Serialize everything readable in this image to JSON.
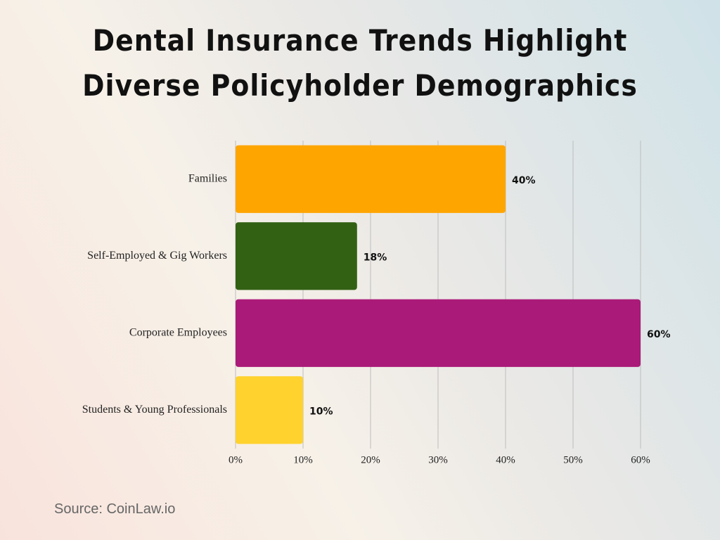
{
  "chart_data": {
    "type": "barh",
    "title": "Dental Insurance Trends Highlight Diverse Policyholder Demographics",
    "categories": [
      "Families",
      "Self-Employed & Gig Workers",
      "Corporate Employees",
      "Students & Young Professionals"
    ],
    "values": [
      40,
      18,
      60,
      10
    ],
    "value_labels": [
      "40%",
      "18%",
      "60%",
      "10%"
    ],
    "colors": [
      "#ffa500",
      "#336114",
      "#aa1a78",
      "#ffd22e"
    ],
    "xlim": [
      0,
      60
    ],
    "xticks": [
      {
        "value": 0,
        "label": "0%"
      },
      {
        "value": 10,
        "label": "10%"
      },
      {
        "value": 20,
        "label": "20%"
      },
      {
        "value": 30,
        "label": "30%"
      },
      {
        "value": 40,
        "label": "40%"
      },
      {
        "value": 50,
        "label": "50%"
      },
      {
        "value": 60,
        "label": "60%"
      }
    ],
    "grid": true,
    "source": "Source: CoinLaw.io"
  }
}
